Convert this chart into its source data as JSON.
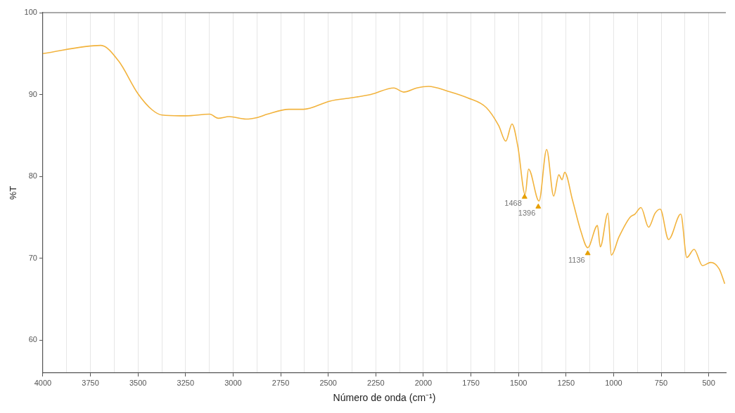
{
  "chart_data": {
    "type": "line",
    "xlabel": "Número de onda (cm⁻¹)",
    "ylabel": "%T",
    "xlim": [
      4000,
      410
    ],
    "ylim": [
      56,
      100
    ],
    "xticks": [
      4000,
      {
        "value": 3875,
        "label": null
      },
      3750,
      {
        "value": 3625,
        "label": null
      },
      3500,
      {
        "value": 3375,
        "label": null
      },
      3250,
      {
        "value": 3125,
        "label": null
      },
      3000,
      {
        "value": 2875,
        "label": null
      },
      2750,
      {
        "value": 2625,
        "label": null
      },
      2500,
      {
        "value": 2375,
        "label": null
      },
      2250,
      {
        "value": 2125,
        "label": null
      },
      2000,
      {
        "value": 1875,
        "label": null
      },
      1750,
      {
        "value": 1625,
        "label": null
      },
      1500,
      {
        "value": 1375,
        "label": null
      },
      1250,
      {
        "value": 1125,
        "label": null
      },
      1000,
      {
        "value": 875,
        "label": null
      },
      750,
      {
        "value": 625,
        "label": null
      },
      500
    ],
    "yticks": [
      60,
      70,
      80,
      90,
      100
    ],
    "grid": "x",
    "legend": false,
    "series": [
      {
        "color": "#f2b33d",
        "marker": "none",
        "x": [
          4000,
          3695,
          3602,
          3500,
          3424,
          3374,
          3248,
          3123,
          3078,
          3021,
          2933,
          2871,
          2820,
          2707,
          2630,
          2491,
          2378,
          2276,
          2155,
          2104,
          2035,
          1973,
          1870,
          1768,
          1669,
          1604,
          1567,
          1534,
          1503,
          1465,
          1447,
          1392,
          1352,
          1315,
          1288,
          1271,
          1257,
          1216,
          1172,
          1136,
          1085,
          1070,
          1030,
          1012,
          972,
          914,
          888,
          856,
          816,
          782,
          755,
          711,
          647,
          615,
          577,
          533,
          489,
          445,
          416
        ],
        "values": [
          95.0,
          96.0,
          94.1,
          90.1,
          88.1,
          87.5,
          87.4,
          87.6,
          87.1,
          87.3,
          87.0,
          87.2,
          87.6,
          88.2,
          88.2,
          89.2,
          89.6,
          90.0,
          90.8,
          90.3,
          90.8,
          91.0,
          90.4,
          89.6,
          88.4,
          86.2,
          84.3,
          86.4,
          83.6,
          77.8,
          80.9,
          77.0,
          83.3,
          77.6,
          80.2,
          79.6,
          80.5,
          77.1,
          73.3,
          71.3,
          74.0,
          71.4,
          75.5,
          70.4,
          72.6,
          75.0,
          75.4,
          76.2,
          73.8,
          75.5,
          76.0,
          72.3,
          75.4,
          70.1,
          71.1,
          69.1,
          69.5,
          68.7,
          66.9
        ]
      },
      {
        "type": "scatter",
        "color": "#e69f00",
        "marker": "triangle",
        "x": [
          1468,
          1396,
          1136
        ],
        "values": [
          77.5,
          76.3,
          70.6
        ]
      }
    ],
    "annotations": [
      {
        "text": "1468",
        "x": 1468,
        "y": 77.5
      },
      {
        "text": "1396",
        "x": 1396,
        "y": 76.3
      },
      {
        "text": "1136",
        "x": 1136,
        "y": 70.6
      }
    ]
  }
}
